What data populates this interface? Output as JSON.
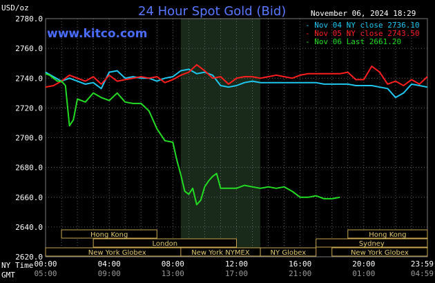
{
  "header": {
    "title": "24 Hour Spot Gold (Bid)",
    "brand": "www.kitco.com",
    "unit_label": "USD/oz",
    "timestamp": "November 06, 2024 18:29"
  },
  "time_labels": {
    "ny_label": "NY Time",
    "gmt_label": "GMT",
    "ny": [
      "00:00",
      "04:00",
      "08:00",
      "12:00",
      "16:00",
      "20:00",
      "23:59"
    ],
    "gmt": [
      "05:00",
      "09:00",
      "13:00",
      "17:00",
      "21:00",
      "01:00",
      "04:59"
    ]
  },
  "sessions": [
    {
      "label": "Hong Kong",
      "row": 0,
      "start": 1,
      "end": 7
    },
    {
      "label": "Hong Kong",
      "row": 0,
      "start": 19,
      "end": 24
    },
    {
      "label": "London",
      "row": 1,
      "start": 3,
      "end": 12
    },
    {
      "label": "Sydney",
      "row": 1,
      "start": 17,
      "end": 24
    },
    {
      "label": "New York Globex",
      "row": 2,
      "start": 0,
      "end": 9
    },
    {
      "label": "New York NYMEX",
      "row": 2,
      "start": 8.5,
      "end": 13.5
    },
    {
      "label": "NY Globex",
      "row": 2,
      "start": 13.5,
      "end": 17
    },
    {
      "label": "New York Globex",
      "row": 2,
      "start": 18,
      "end": 24
    }
  ],
  "colors": {
    "nov04": "#1ec8f0",
    "nov05": "#ff1e1e",
    "nov06": "#22dd22",
    "grid": "#7a7a7a",
    "shade": "#1a2a1a",
    "session": "#c8a850"
  },
  "chart_data": {
    "type": "line",
    "title": "24 Hour Spot Gold (Bid)",
    "ylabel": "USD/oz",
    "xlabel": "",
    "x_unit": "hours (NY time)",
    "xlim": [
      0,
      24
    ],
    "ylim": [
      2620,
      2780
    ],
    "yticks": [
      2620,
      2640,
      2660,
      2680,
      2700,
      2720,
      2740,
      2760,
      2780
    ],
    "grid": true,
    "legend_position": "top-right",
    "highlight_range": [
      8.5,
      13.5
    ],
    "series": [
      {
        "name": "Nov 04 NY close 2736.10",
        "color": "#1ec8f0",
        "x": [
          0,
          0.5,
          1,
          1.5,
          2,
          2.5,
          3,
          3.5,
          4,
          4.5,
          5,
          5.5,
          6,
          6.5,
          7,
          7.5,
          8,
          8.5,
          9,
          9.5,
          10,
          10.5,
          11,
          11.5,
          12,
          12.5,
          13,
          13.5,
          14,
          14.5,
          15,
          15.5,
          16,
          16.5,
          17,
          17.5,
          18,
          18.5,
          19,
          19.5,
          20,
          20.5,
          21,
          21.5,
          22,
          22.5,
          23,
          23.5,
          24
        ],
        "y": [
          2744,
          2741,
          2738,
          2740,
          2738,
          2736,
          2737,
          2733,
          2744,
          2745,
          2740,
          2741,
          2740,
          2740,
          2738,
          2740,
          2741,
          2745,
          2746,
          2743,
          2744,
          2742,
          2735,
          2734,
          2735,
          2737,
          2738,
          2737,
          2737,
          2737,
          2737,
          2737,
          2737,
          2737,
          2737,
          2736,
          2736,
          2736,
          2736,
          2735,
          2735,
          2735,
          2734,
          2733,
          2727,
          2730,
          2736,
          2735,
          2734
        ]
      },
      {
        "name": "Nov 05 NY close 2743.50",
        "color": "#ff1e1e",
        "x": [
          0,
          0.5,
          1,
          1.5,
          2,
          2.5,
          3,
          3.5,
          4,
          4.5,
          5,
          5.5,
          6,
          6.5,
          7,
          7.5,
          8,
          8.5,
          9,
          9.5,
          10,
          10.5,
          11,
          11.5,
          12,
          12.5,
          13,
          13.5,
          14,
          14.5,
          15,
          15.5,
          16,
          16.5,
          17,
          17.5,
          18,
          18.5,
          19,
          19.5,
          20,
          20.5,
          21,
          21.5,
          22,
          22.5,
          23,
          23.5,
          24
        ],
        "y": [
          2734,
          2735,
          2738,
          2742,
          2740,
          2738,
          2741,
          2736,
          2742,
          2738,
          2739,
          2740,
          2741,
          2740,
          2741,
          2737,
          2739,
          2742,
          2744,
          2749,
          2745,
          2740,
          2741,
          2736,
          2740,
          2741,
          2741,
          2740,
          2741,
          2742,
          2741,
          2740,
          2742,
          2743,
          2743,
          2743,
          2743,
          2743,
          2744,
          2739,
          2739,
          2748,
          2744,
          2736,
          2738,
          2735,
          2739,
          2736,
          2741
        ]
      },
      {
        "name": "Nov 06 Last 2661.20",
        "color": "#22dd22",
        "x": [
          0,
          0.25,
          0.5,
          0.75,
          1,
          1.25,
          1.5,
          1.75,
          2,
          2.5,
          3,
          3.5,
          4,
          4.5,
          5,
          5.5,
          6,
          6.5,
          7,
          7.5,
          8,
          8.25,
          8.5,
          8.75,
          9,
          9.25,
          9.5,
          9.75,
          10,
          10.25,
          10.5,
          10.75,
          11,
          11.5,
          12,
          12.5,
          13,
          13.5,
          14,
          14.5,
          15,
          15.5,
          16,
          16.5,
          17,
          17.5,
          18,
          18.5
        ],
        "y": [
          2743,
          2742,
          2740,
          2738,
          2738,
          2735,
          2708,
          2712,
          2726,
          2724,
          2730,
          2727,
          2725,
          2730,
          2724,
          2723,
          2723,
          2718,
          2706,
          2698,
          2697,
          2685,
          2675,
          2664,
          2662,
          2666,
          2655,
          2658,
          2667,
          2671,
          2674,
          2676,
          2666,
          2666,
          2666,
          2668,
          2667,
          2666,
          2667,
          2666,
          2667,
          2664,
          2660,
          2660,
          2661,
          2659,
          2659,
          2660
        ]
      }
    ]
  }
}
